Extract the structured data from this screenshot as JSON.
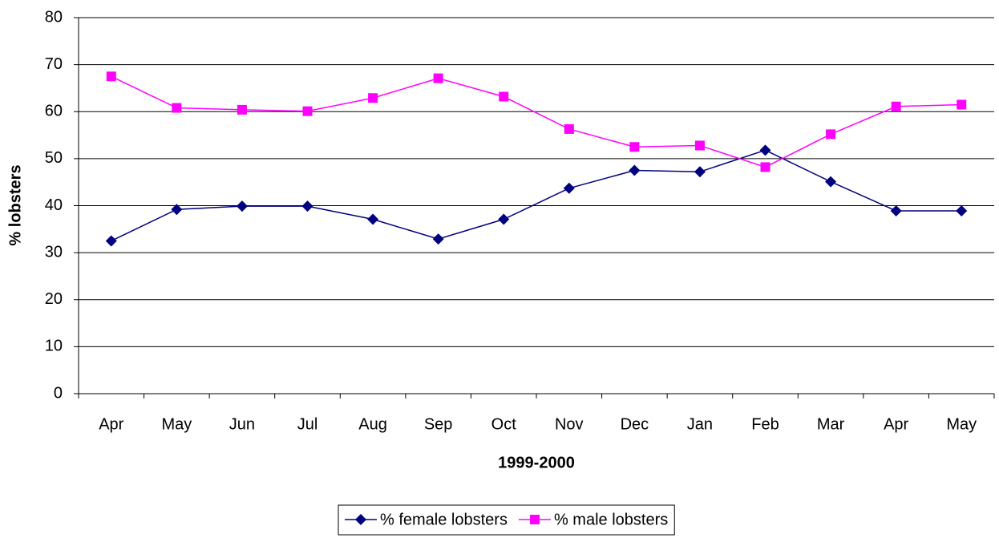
{
  "chart_data": {
    "type": "line",
    "x_label": "1999-2000",
    "y_label": "% lobsters",
    "categories": [
      "Apr",
      "May",
      "Jun",
      "Jul",
      "Aug",
      "Sep",
      "Oct",
      "Nov",
      "Dec",
      "Jan",
      "Feb",
      "Mar",
      "Apr",
      "May"
    ],
    "series": [
      {
        "name": "% female lobsters",
        "color": "#000080",
        "marker": "diamond",
        "values": [
          32.5,
          39.2,
          39.9,
          39.9,
          37.1,
          32.9,
          37.1,
          43.7,
          47.5,
          47.2,
          51.8,
          45.1,
          38.9,
          38.9
        ]
      },
      {
        "name": "% male lobsters",
        "color": "#ff00ff",
        "marker": "square",
        "values": [
          67.5,
          60.8,
          60.4,
          60.1,
          62.9,
          67.1,
          63.2,
          56.3,
          52.5,
          52.8,
          48.2,
          55.2,
          61.1,
          61.5
        ]
      }
    ],
    "ylim": [
      0,
      80
    ],
    "yticks": [
      0,
      10,
      20,
      30,
      40,
      50,
      60,
      70,
      80
    ],
    "grid": true,
    "legend": "bottom"
  }
}
